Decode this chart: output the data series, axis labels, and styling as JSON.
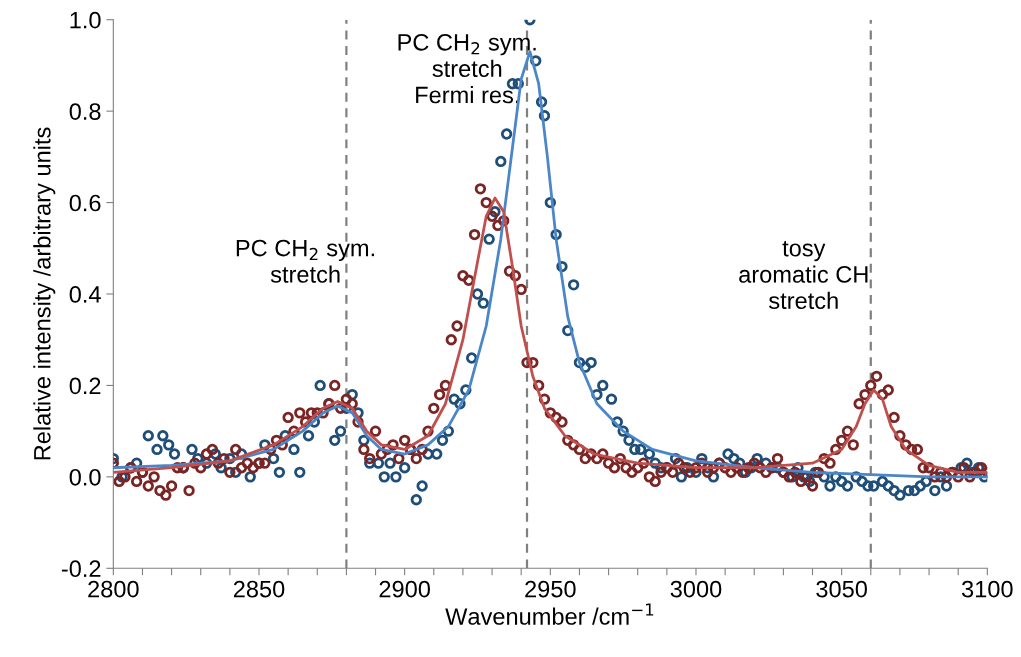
{
  "chart_data": {
    "type": "scatter",
    "xlabel": "Wavenumber /cm$^{−1}$",
    "ylabel": "Relative intensity /arbitrary units",
    "annotations": [
      "PC CH$_{2}$ sym.\nstretch",
      "PC CH$_{2}$ sym.\nstretch\nFermi res.",
      "tosy\naromatic CH\nstretch"
    ],
    "xlim": [
      2800,
      3100
    ],
    "xticks": [
      2800,
      {
        "value": 2810,
        "label": null
      },
      {
        "value": 2820,
        "label": null
      },
      {
        "value": 2830,
        "label": null
      },
      {
        "value": 2840,
        "label": null
      },
      2850,
      {
        "value": 2860,
        "label": null
      },
      {
        "value": 2870,
        "label": null
      },
      {
        "value": 2880,
        "label": null
      },
      {
        "value": 2890,
        "label": null
      },
      2900,
      {
        "value": 2910,
        "label": null
      },
      {
        "value": 2920,
        "label": null
      },
      {
        "value": 2930,
        "label": null
      },
      {
        "value": 2940,
        "label": null
      },
      2950,
      {
        "value": 2960,
        "label": null
      },
      {
        "value": 2970,
        "label": null
      },
      {
        "value": 2980,
        "label": null
      },
      {
        "value": 2990,
        "label": null
      },
      3000,
      {
        "value": 3010,
        "label": null
      },
      {
        "value": 3020,
        "label": null
      },
      {
        "value": 3030,
        "label": null
      },
      {
        "value": 3040,
        "label": null
      },
      3050,
      {
        "value": 3060,
        "label": null
      },
      {
        "value": 3070,
        "label": null
      },
      {
        "value": 3080,
        "label": null
      },
      {
        "value": 3090,
        "label": null
      },
      3100
    ],
    "ylim": [
      -0.2,
      1.0
    ],
    "yticks": [
      {
        "value": -0.2,
        "label": "-0.2"
      },
      {
        "value": 0,
        "label": "0.0"
      },
      {
        "value": 0.2,
        "label": "0.2"
      },
      {
        "value": 0.4,
        "label": "0.4"
      },
      {
        "value": 0.6,
        "label": "0.6"
      },
      {
        "value": 0.8,
        "label": "0.8"
      },
      {
        "value": 1.0,
        "label": "1.0"
      }
    ],
    "grid": false,
    "marker": "circle",
    "ref_lines": [
      {
        "axis": "x",
        "value": 2880,
        "color": "#808080",
        "line_style": "dashed"
      },
      {
        "axis": "x",
        "value": 2942,
        "color": "#808080",
        "line_style": "dashed"
      },
      {
        "axis": "x",
        "value": 3060,
        "color": "#808080",
        "line_style": "dashed"
      }
    ],
    "series": [
      {
        "color": "#1f4e79",
        "x": [
          2800,
          2803,
          2806,
          2808,
          2810,
          2812,
          2815,
          2817,
          2819,
          2821,
          2824,
          2827,
          2829,
          2832,
          2835,
          2837,
          2840,
          2842,
          2844,
          2847,
          2850,
          2852,
          2855,
          2857,
          2859,
          2862,
          2864,
          2867,
          2869,
          2871,
          2874,
          2876,
          2878,
          2880,
          2882,
          2884,
          2886,
          2888,
          2891,
          2893,
          2895,
          2897,
          2900,
          2902,
          2904,
          2906,
          2908,
          2911,
          2913,
          2915,
          2917,
          2919,
          2921,
          2923,
          2925,
          2927,
          2929,
          2931,
          2933,
          2935,
          2937,
          2939,
          2943,
          2945,
          2947,
          2948,
          2950,
          2952,
          2954,
          2956,
          2958,
          2960,
          2962,
          2964,
          2966,
          2968,
          2971,
          2973,
          2975,
          2977,
          2979,
          2981,
          2984,
          2986,
          2988,
          2990,
          2993,
          2995,
          2997,
          3000,
          3002,
          3004,
          3006,
          3008,
          3011,
          3013,
          3015,
          3017,
          3019,
          3021,
          3024,
          3026,
          3028,
          3030,
          3033,
          3035,
          3037,
          3039,
          3041,
          3044,
          3046,
          3048,
          3050,
          3052,
          3055,
          3057,
          3059,
          3061,
          3064,
          3066,
          3068,
          3070,
          3073,
          3075,
          3077,
          3079,
          3082,
          3084,
          3086,
          3088,
          3091,
          3093,
          3095,
          3097,
          3099
        ],
        "values": [
          0.04,
          0.0,
          0.02,
          0.03,
          0.01,
          0.09,
          0.06,
          0.09,
          0.07,
          0.05,
          0.02,
          0.06,
          0.04,
          0.03,
          0.05,
          0.02,
          0.04,
          0.01,
          0.05,
          0.0,
          0.03,
          0.07,
          0.04,
          0.01,
          0.09,
          0.06,
          0.01,
          0.09,
          0.12,
          0.2,
          0.16,
          0.08,
          0.1,
          0.15,
          0.18,
          0.14,
          0.08,
          0.03,
          0.03,
          0.0,
          0.03,
          0.0,
          0.02,
          0.06,
          -0.05,
          -0.02,
          0.05,
          0.05,
          0.08,
          0.1,
          0.17,
          0.16,
          0.19,
          0.26,
          0.4,
          0.38,
          0.52,
          0.58,
          0.69,
          0.75,
          0.86,
          0.86,
          1.0,
          0.91,
          0.82,
          0.79,
          0.6,
          0.53,
          0.46,
          0.32,
          0.42,
          0.25,
          0.24,
          0.25,
          0.18,
          0.2,
          0.17,
          0.12,
          0.1,
          0.08,
          0.06,
          0.06,
          0.05,
          0.03,
          0.02,
          0.02,
          0.04,
          0.0,
          0.02,
          0.01,
          0.04,
          0.02,
          0.0,
          0.03,
          0.05,
          0.04,
          0.03,
          0.01,
          0.02,
          0.04,
          0.03,
          0.02,
          0.02,
          0.01,
          0.0,
          0.02,
          0.0,
          -0.01,
          0.01,
          0.0,
          -0.02,
          0.0,
          -0.01,
          -0.02,
          0.0,
          -0.01,
          -0.02,
          -0.02,
          -0.01,
          -0.02,
          -0.03,
          -0.04,
          -0.03,
          -0.03,
          -0.02,
          -0.01,
          -0.03,
          0.0,
          -0.02,
          0.01,
          0.02,
          0.03,
          0.01,
          0.02,
          0.0
        ]
      },
      {
        "color": "#7b2424",
        "x": [
          2800,
          2802,
          2804,
          2806,
          2808,
          2810,
          2812,
          2814,
          2816,
          2818,
          2820,
          2822,
          2824,
          2826,
          2828,
          2830,
          2832,
          2834,
          2836,
          2838,
          2840,
          2842,
          2844,
          2846,
          2848,
          2850,
          2852,
          2854,
          2856,
          2858,
          2860,
          2862,
          2864,
          2866,
          2868,
          2870,
          2872,
          2874,
          2876,
          2878,
          2880,
          2882,
          2884,
          2886,
          2888,
          2890,
          2892,
          2894,
          2896,
          2898,
          2900,
          2902,
          2904,
          2906,
          2908,
          2910,
          2912,
          2914,
          2916,
          2918,
          2920,
          2922,
          2924,
          2926,
          2928,
          2930,
          2932,
          2934,
          2936,
          2938,
          2940,
          2942,
          2944,
          2946,
          2948,
          2950,
          2952,
          2954,
          2956,
          2958,
          2960,
          2962,
          2964,
          2966,
          2968,
          2970,
          2972,
          2974,
          2976,
          2978,
          2980,
          2982,
          2984,
          2986,
          2988,
          2990,
          2992,
          2994,
          2996,
          2998,
          3000,
          3002,
          3004,
          3006,
          3008,
          3010,
          3012,
          3014,
          3016,
          3018,
          3020,
          3022,
          3024,
          3026,
          3028,
          3030,
          3032,
          3034,
          3036,
          3038,
          3040,
          3042,
          3044,
          3046,
          3048,
          3050,
          3052,
          3054,
          3056,
          3058,
          3060,
          3062,
          3064,
          3066,
          3068,
          3070,
          3072,
          3074,
          3076,
          3078,
          3080,
          3082,
          3084,
          3086,
          3088,
          3090,
          3092,
          3094,
          3096,
          3098,
          3100
        ],
        "values": [
          0.03,
          -0.01,
          0.0,
          0.02,
          -0.01,
          0.01,
          -0.02,
          0.0,
          -0.03,
          -0.04,
          -0.02,
          0.02,
          0.02,
          -0.03,
          0.03,
          0.02,
          0.05,
          0.06,
          0.03,
          0.04,
          0.01,
          0.06,
          0.02,
          0.03,
          0.02,
          0.03,
          0.03,
          0.06,
          0.08,
          0.07,
          0.13,
          0.1,
          0.14,
          0.12,
          0.14,
          0.14,
          0.14,
          0.16,
          0.2,
          0.15,
          0.17,
          0.16,
          0.12,
          0.06,
          0.04,
          0.1,
          0.05,
          0.06,
          0.07,
          0.04,
          0.08,
          0.06,
          0.04,
          0.06,
          0.1,
          0.15,
          0.18,
          0.2,
          0.3,
          0.33,
          0.44,
          0.43,
          0.53,
          0.63,
          0.6,
          0.57,
          0.55,
          0.56,
          0.45,
          0.44,
          0.41,
          0.25,
          0.25,
          0.2,
          0.17,
          0.14,
          0.13,
          0.12,
          0.08,
          0.07,
          0.06,
          0.04,
          0.05,
          0.04,
          0.05,
          0.03,
          0.02,
          0.04,
          0.02,
          0.01,
          0.02,
          0.03,
          0.0,
          -0.01,
          0.01,
          0.02,
          0.01,
          0.03,
          0.02,
          0.01,
          0.02,
          0.03,
          0.01,
          0.02,
          0.03,
          0.02,
          0.01,
          0.02,
          0.01,
          0.02,
          0.03,
          0.02,
          0.01,
          0.02,
          0.04,
          0.01,
          0.0,
          0.01,
          -0.01,
          0.0,
          -0.02,
          0.01,
          0.04,
          0.03,
          0.06,
          0.08,
          0.1,
          0.07,
          0.16,
          0.18,
          0.2,
          0.22,
          0.18,
          0.19,
          0.13,
          0.09,
          0.07,
          0.06,
          0.06,
          0.02,
          0.02,
          0.0,
          0.01,
          0.0,
          0.01,
          0.0,
          0.02,
          0.0,
          0.01,
          0.02,
          0.01
        ]
      },
      {
        "type": "line",
        "color": "#4a86c8",
        "marker": "none",
        "x": [
          2800,
          2820,
          2840,
          2855,
          2865,
          2872,
          2877,
          2882,
          2887,
          2892,
          2900,
          2908,
          2915,
          2922,
          2928,
          2933,
          2937,
          2940,
          2943,
          2946,
          2949,
          2952,
          2956,
          2960,
          2966,
          2975,
          2985,
          3000,
          3020,
          3040,
          3060,
          3080,
          3100
        ],
        "values": [
          0.02,
          0.025,
          0.035,
          0.06,
          0.1,
          0.14,
          0.155,
          0.14,
          0.09,
          0.06,
          0.05,
          0.07,
          0.11,
          0.19,
          0.33,
          0.52,
          0.72,
          0.87,
          0.93,
          0.86,
          0.7,
          0.52,
          0.35,
          0.25,
          0.16,
          0.1,
          0.06,
          0.035,
          0.02,
          0.01,
          0.005,
          0.0,
          0.0
        ]
      },
      {
        "type": "line",
        "color": "#c0504d",
        "marker": "none",
        "x": [
          2800,
          2820,
          2840,
          2855,
          2865,
          2872,
          2877,
          2882,
          2887,
          2892,
          2900,
          2908,
          2914,
          2920,
          2925,
          2928,
          2931,
          2934,
          2937,
          2940,
          2944,
          2948,
          2955,
          2965,
          2980,
          3000,
          3020,
          3040,
          3050,
          3055,
          3058,
          3061,
          3064,
          3067,
          3072,
          3080,
          3090,
          3100
        ],
        "values": [
          0.01,
          0.02,
          0.035,
          0.07,
          0.11,
          0.15,
          0.165,
          0.15,
          0.1,
          0.07,
          0.06,
          0.09,
          0.16,
          0.3,
          0.47,
          0.57,
          0.61,
          0.58,
          0.46,
          0.33,
          0.22,
          0.15,
          0.09,
          0.05,
          0.03,
          0.02,
          0.02,
          0.03,
          0.06,
          0.11,
          0.16,
          0.19,
          0.17,
          0.11,
          0.06,
          0.025,
          0.01,
          0.01
        ]
      }
    ]
  }
}
